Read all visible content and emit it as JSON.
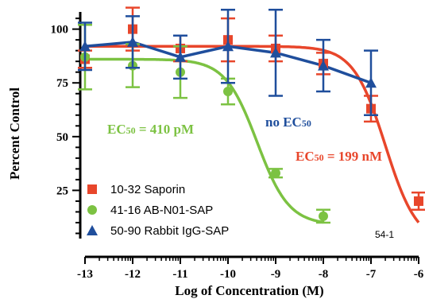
{
  "chart_data": {
    "type": "scatter",
    "xlabel": "Log of Concentration (M)",
    "ylabel": "Percent Control",
    "xlim": [
      -13,
      -6
    ],
    "ylim": [
      0,
      108
    ],
    "x_ticks": [
      -13,
      -12,
      -11,
      -10,
      -9,
      -8,
      -7,
      -6
    ],
    "x_tick_labels": [
      "-13",
      "-12",
      "-11",
      "-10",
      "-9",
      "-8",
      "-7",
      "-6"
    ],
    "y_ticks": [
      25,
      50,
      75,
      100
    ],
    "y_tick_labels": [
      "25",
      "50",
      "75",
      "100"
    ],
    "grid": false,
    "legend_position": "bottom-left",
    "series": [
      {
        "name": "10-32 Saporin",
        "color": "#e8462b",
        "marker": "square",
        "x": [
          -13,
          -12,
          -11,
          -10,
          -9,
          -8,
          -7,
          -6
        ],
        "y": [
          86,
          100,
          91,
          95,
          91,
          84,
          63,
          20
        ],
        "err": [
          4,
          10,
          6,
          10,
          6,
          5,
          6,
          4
        ],
        "curve": {
          "top": 92,
          "bottom": 0,
          "log_ec50": -6.7,
          "hill": 1.3
        }
      },
      {
        "name": "41-16 AB-N01-SAP",
        "color": "#7cc242",
        "marker": "circle",
        "x": [
          -13,
          -12,
          -11,
          -10,
          -9,
          -8
        ],
        "y": [
          87,
          83,
          80,
          71,
          33,
          13
        ],
        "err": [
          15,
          10,
          12,
          6,
          2,
          3
        ],
        "curve": {
          "top": 86,
          "bottom": 9,
          "log_ec50": -9.39,
          "hill": 1.3
        }
      },
      {
        "name": "50-90 Rabbit IgG-SAP",
        "color": "#1f4e9c",
        "marker": "triangle",
        "x": [
          -13,
          -12,
          -11,
          -10,
          -9,
          -8,
          -7
        ],
        "y": [
          92,
          94,
          87,
          92,
          89,
          83,
          75
        ],
        "err": [
          11,
          12,
          10,
          17,
          20,
          12,
          15
        ],
        "line": true
      }
    ],
    "annotations": [
      {
        "text": "EC",
        "sub": "50",
        "rest": " = 410 pM",
        "color": "#7cc242"
      },
      {
        "text": "no EC",
        "sub": "50",
        "rest": "",
        "color": "#1f4e9c"
      },
      {
        "text": "EC",
        "sub": "50",
        "rest": " = 199 nM",
        "color": "#e8462b"
      }
    ],
    "code_label": "54-1"
  }
}
